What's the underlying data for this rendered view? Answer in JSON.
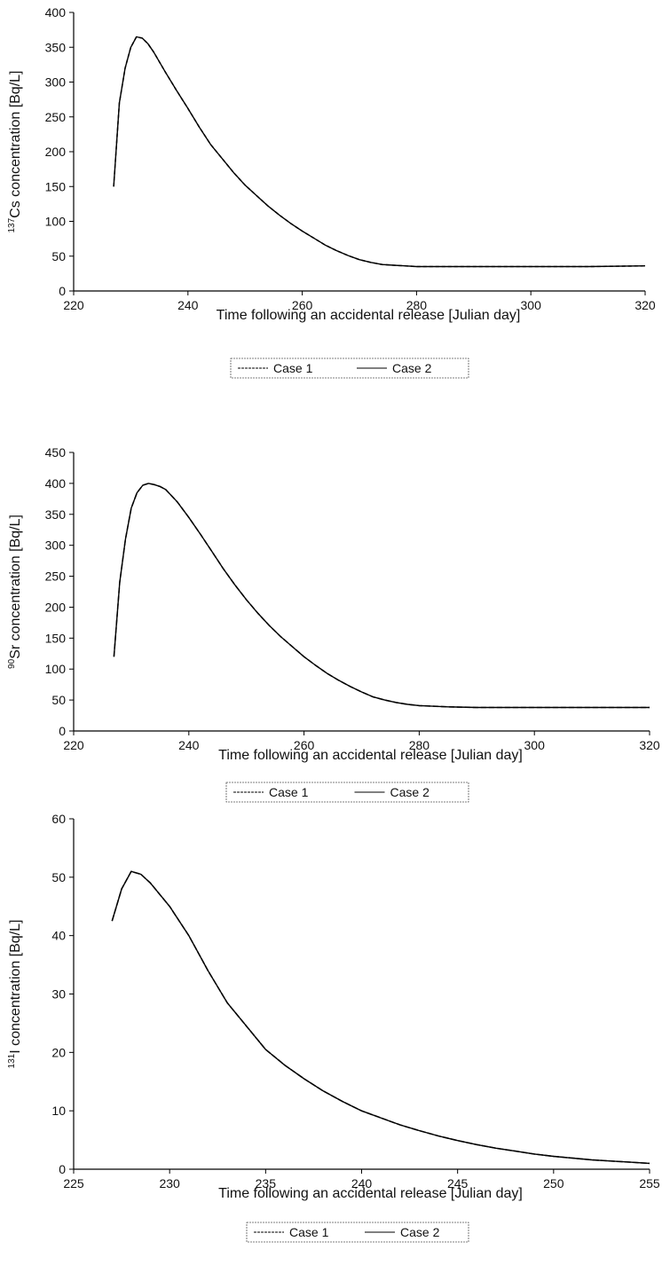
{
  "chart_data": [
    {
      "type": "line",
      "xlabel": "Time following an accidental release [Julian day]",
      "ylabel_sup": "137",
      "ylabel": "Cs concentration [Bq/L]",
      "xlim": [
        220,
        320
      ],
      "ylim": [
        0,
        400
      ],
      "xticks": [
        "220",
        "240",
        "260",
        "280",
        "300",
        "320"
      ],
      "yticks": [
        "0",
        "50",
        "100",
        "150",
        "200",
        "250",
        "300",
        "350",
        "400"
      ],
      "legend_position": "bottom-center",
      "series": [
        {
          "name": "Case 1",
          "dash": "4,3",
          "x": [
            227,
            228,
            229,
            230,
            231,
            232,
            233,
            234,
            236,
            238,
            240,
            242,
            244,
            246,
            248,
            250,
            252,
            254,
            256,
            258,
            260,
            262,
            264,
            266,
            268,
            270,
            272,
            274,
            276,
            278,
            280,
            285,
            290,
            300,
            310,
            320
          ],
          "y": [
            150,
            270,
            320,
            350,
            365,
            363,
            355,
            343,
            315,
            288,
            262,
            235,
            210,
            190,
            170,
            152,
            137,
            122,
            109,
            97,
            86,
            76,
            66,
            58,
            51,
            45,
            41,
            38,
            37,
            36,
            35,
            35,
            35,
            35,
            35,
            36
          ]
        },
        {
          "name": "Case 2",
          "dash": "",
          "x": [
            227,
            228,
            229,
            230,
            231,
            232,
            233,
            234,
            236,
            238,
            240,
            242,
            244,
            246,
            248,
            250,
            252,
            254,
            256,
            258,
            260,
            262,
            264,
            266,
            268,
            270,
            272,
            274,
            276,
            278,
            280,
            285,
            290,
            300,
            310,
            320
          ],
          "y": [
            150,
            270,
            320,
            350,
            365,
            363,
            355,
            343,
            315,
            288,
            262,
            235,
            210,
            190,
            170,
            152,
            137,
            122,
            109,
            97,
            86,
            76,
            66,
            58,
            51,
            45,
            41,
            38,
            37,
            36,
            35,
            35,
            35,
            35,
            35,
            36
          ]
        }
      ]
    },
    {
      "type": "line",
      "xlabel": "Time following an accidental release [Julian day]",
      "ylabel_sup": "90",
      "ylabel": "Sr concentration [Bq/L]",
      "xlim": [
        220,
        320
      ],
      "ylim": [
        0,
        450
      ],
      "xticks": [
        "220",
        "240",
        "260",
        "280",
        "300",
        "320"
      ],
      "yticks": [
        "0",
        "50",
        "100",
        "150",
        "200",
        "250",
        "300",
        "350",
        "400",
        "450"
      ],
      "legend_position": "bottom-center",
      "series": [
        {
          "name": "Case 1",
          "dash": "6,3",
          "x": [
            227,
            228,
            229,
            230,
            231,
            232,
            233,
            234,
            235,
            236,
            238,
            240,
            242,
            244,
            246,
            248,
            250,
            252,
            254,
            256,
            258,
            260,
            262,
            264,
            266,
            268,
            270,
            272,
            274,
            276,
            278,
            280,
            285,
            290,
            300,
            310,
            320
          ],
          "y": [
            120,
            240,
            310,
            360,
            385,
            397,
            400,
            398,
            395,
            390,
            370,
            345,
            318,
            290,
            262,
            236,
            212,
            190,
            170,
            152,
            136,
            120,
            106,
            93,
            82,
            72,
            63,
            55,
            50,
            46,
            43,
            41,
            39,
            38,
            38,
            38,
            38
          ]
        },
        {
          "name": "Case 2",
          "dash": "",
          "x": [
            227,
            228,
            229,
            230,
            231,
            232,
            233,
            234,
            235,
            236,
            238,
            240,
            242,
            244,
            246,
            248,
            250,
            252,
            254,
            256,
            258,
            260,
            262,
            264,
            266,
            268,
            270,
            272,
            274,
            276,
            278,
            280,
            285,
            290,
            300,
            310,
            320
          ],
          "y": [
            120,
            240,
            310,
            360,
            385,
            397,
            400,
            398,
            395,
            390,
            370,
            345,
            318,
            290,
            262,
            236,
            212,
            190,
            170,
            152,
            136,
            120,
            106,
            93,
            82,
            72,
            63,
            55,
            50,
            46,
            43,
            41,
            39,
            38,
            38,
            38,
            38
          ]
        }
      ]
    },
    {
      "type": "line",
      "xlabel": "Time following an accidental release [Julian day]",
      "ylabel_sup": "131",
      "ylabel": "I concentration [Bq/L]",
      "xlim": [
        225,
        255
      ],
      "ylim": [
        0,
        60
      ],
      "xticks": [
        "225",
        "230",
        "235",
        "240",
        "245",
        "250",
        "255"
      ],
      "yticks": [
        "0",
        "10",
        "20",
        "30",
        "40",
        "50",
        "60"
      ],
      "legend_position": "bottom-center",
      "series": [
        {
          "name": "Case 1",
          "dash": "7,2",
          "x": [
            227,
            227.5,
            228,
            228.5,
            229,
            230,
            231,
            232,
            233,
            234,
            235,
            236,
            237,
            238,
            239,
            240,
            241,
            242,
            243,
            244,
            245,
            246,
            247,
            248,
            249,
            250,
            251,
            252,
            253,
            254,
            255
          ],
          "y": [
            42.5,
            48,
            51,
            50.5,
            49,
            45,
            40,
            34,
            28.5,
            24.5,
            20.5,
            17.8,
            15.5,
            13.4,
            11.6,
            10,
            8.8,
            7.6,
            6.6,
            5.7,
            4.9,
            4.2,
            3.6,
            3.1,
            2.6,
            2.2,
            1.9,
            1.6,
            1.4,
            1.2,
            1.0
          ]
        },
        {
          "name": "Case 2",
          "dash": "",
          "x": [
            227,
            227.5,
            228,
            228.5,
            229,
            230,
            231,
            232,
            233,
            234,
            235,
            236,
            237,
            238,
            239,
            240,
            241,
            242,
            243,
            244,
            245,
            246,
            247,
            248,
            249,
            250,
            251,
            252,
            253,
            254,
            255
          ],
          "y": [
            42.5,
            48,
            51,
            50.5,
            49,
            45,
            40,
            34,
            28.5,
            24.5,
            20.5,
            17.8,
            15.5,
            13.4,
            11.6,
            10,
            8.8,
            7.6,
            6.6,
            5.7,
            4.9,
            4.2,
            3.6,
            3.1,
            2.6,
            2.2,
            1.9,
            1.6,
            1.4,
            1.2,
            1.0
          ]
        }
      ]
    }
  ]
}
